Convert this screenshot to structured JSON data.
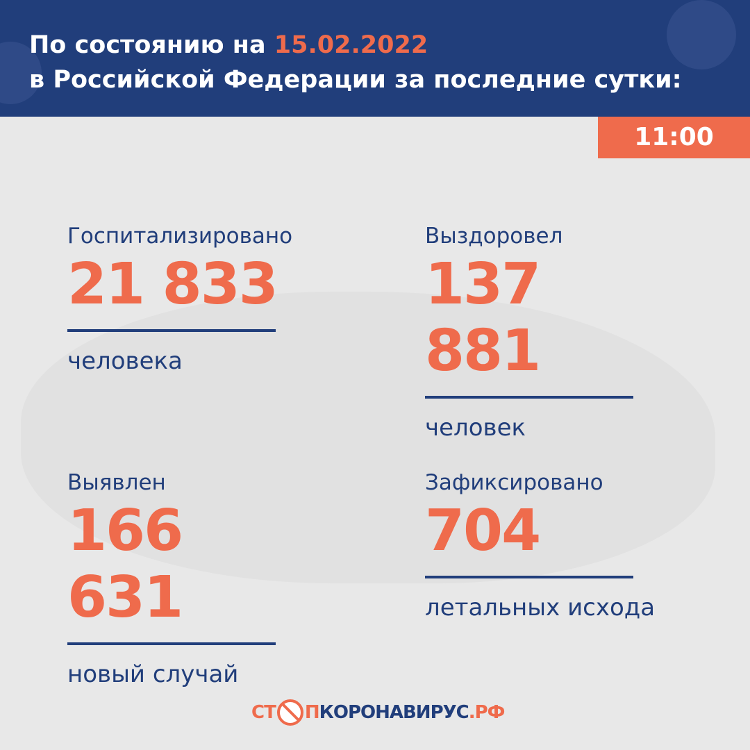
{
  "header": {
    "line1_prefix": "По состоянию на ",
    "date": "15.02.2022",
    "line2": "в Российской Федерации за последние сутки:"
  },
  "time": "11:00",
  "stats": [
    {
      "label": "Госпитализировано",
      "value": "21 833",
      "unit": "человека"
    },
    {
      "label": "Выздоровел",
      "value": "137 881",
      "unit": "человек"
    },
    {
      "label": "Выявлен",
      "value": "166 631",
      "unit": "новый случай"
    },
    {
      "label": "Зафиксировано",
      "value": "704",
      "unit": "летальных исхода"
    }
  ],
  "logo": {
    "part1": "СТ",
    "part2": "П",
    "part3": "КОРОНАВИРУС",
    "part4": ".РФ"
  },
  "colors": {
    "navy": "#213e7b",
    "accent": "#ef6b4c"
  }
}
